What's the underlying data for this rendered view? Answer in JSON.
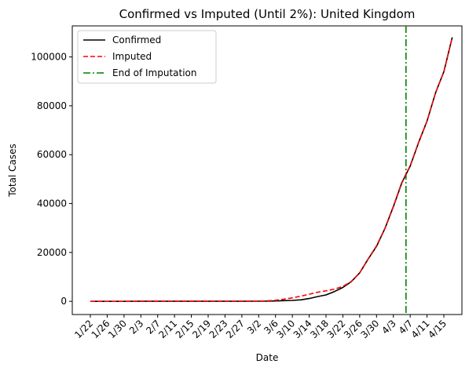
{
  "chart_data": {
    "type": "line",
    "title": "Confirmed vs Imputed (Until 2%): United Kingdom",
    "xlabel": "Date",
    "ylabel": "Total Cases",
    "x_tick_labels": [
      "1/22",
      "1/26",
      "1/30",
      "2/3",
      "2/7",
      "2/11",
      "2/15",
      "2/19",
      "2/23",
      "2/27",
      "3/2",
      "3/6",
      "3/10",
      "3/14",
      "3/18",
      "3/22",
      "3/26",
      "3/30",
      "4/3",
      "4/7",
      "4/11",
      "4/15"
    ],
    "y_tick_labels": [
      "0",
      "20000",
      "40000",
      "60000",
      "80000",
      "100000"
    ],
    "ylim": [
      -5400,
      112700
    ],
    "grid": false,
    "legend_position": "top-left",
    "legend": [
      "Confirmed",
      "Imputed",
      "End of Imputation"
    ],
    "series": [
      {
        "name": "Confirmed",
        "color": "#000000",
        "style": "solid",
        "points": [
          [
            "1/22",
            0
          ],
          [
            "1/26",
            0
          ],
          [
            "1/30",
            0
          ],
          [
            "2/3",
            8
          ],
          [
            "2/7",
            9
          ],
          [
            "2/11",
            9
          ],
          [
            "2/15",
            9
          ],
          [
            "2/19",
            9
          ],
          [
            "2/23",
            13
          ],
          [
            "2/27",
            15
          ],
          [
            "3/2",
            40
          ],
          [
            "3/4",
            87
          ],
          [
            "3/6",
            164
          ],
          [
            "3/8",
            273
          ],
          [
            "3/10",
            373
          ],
          [
            "3/12",
            590
          ],
          [
            "3/14",
            1140
          ],
          [
            "3/16",
            1950
          ],
          [
            "3/18",
            2630
          ],
          [
            "3/20",
            4000
          ],
          [
            "3/22",
            5680
          ],
          [
            "3/24",
            8000
          ],
          [
            "3/26",
            11660
          ],
          [
            "3/28",
            17300
          ],
          [
            "3/30",
            22500
          ],
          [
            "4/1",
            29800
          ],
          [
            "4/3",
            38700
          ],
          [
            "4/5",
            48400
          ],
          [
            "4/7",
            55300
          ],
          [
            "4/9",
            65000
          ],
          [
            "4/11",
            73760
          ],
          [
            "4/13",
            85200
          ],
          [
            "4/15",
            94000
          ],
          [
            "4/17",
            108000
          ]
        ]
      },
      {
        "name": "Imputed",
        "color": "#ff0000",
        "style": "dashed",
        "points": [
          [
            "1/22",
            0
          ],
          [
            "1/26",
            0
          ],
          [
            "1/30",
            0
          ],
          [
            "2/3",
            8
          ],
          [
            "2/7",
            9
          ],
          [
            "2/11",
            9
          ],
          [
            "2/15",
            9
          ],
          [
            "2/19",
            9
          ],
          [
            "2/23",
            13
          ],
          [
            "2/27",
            15
          ],
          [
            "3/2",
            60
          ],
          [
            "3/4",
            180
          ],
          [
            "3/6",
            450
          ],
          [
            "3/8",
            900
          ],
          [
            "3/10",
            1400
          ],
          [
            "3/12",
            2100
          ],
          [
            "3/14",
            2900
          ],
          [
            "3/16",
            3700
          ],
          [
            "3/18",
            4300
          ],
          [
            "3/20",
            5000
          ],
          [
            "3/22",
            6100
          ],
          [
            "3/24",
            8100
          ],
          [
            "3/26",
            11700
          ],
          [
            "3/28",
            17400
          ],
          [
            "3/30",
            22700
          ],
          [
            "4/1",
            29900
          ],
          [
            "4/3",
            38900
          ],
          [
            "4/5",
            48600
          ],
          [
            "4/7",
            55500
          ],
          [
            "4/9",
            65100
          ],
          [
            "4/11",
            73800
          ],
          [
            "4/13",
            85200
          ],
          [
            "4/15",
            94000
          ],
          [
            "4/17",
            108000
          ]
        ]
      }
    ],
    "vertical_line": {
      "name": "End of Imputation",
      "x": "4/6",
      "color": "#008000",
      "style": "dashdot"
    }
  }
}
